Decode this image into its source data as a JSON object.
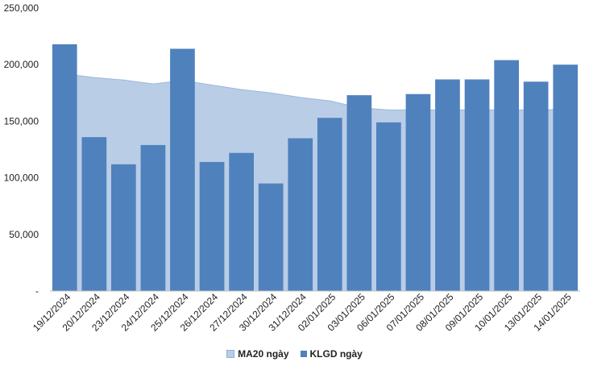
{
  "chart_data": {
    "type": "bar",
    "title": "",
    "xlabel": "",
    "ylabel": "",
    "ylim": [
      0,
      250000
    ],
    "y_ticks": [
      {
        "value": 0,
        "label": "-"
      },
      {
        "value": 50000,
        "label": "50,000"
      },
      {
        "value": 100000,
        "label": "100,000"
      },
      {
        "value": 150000,
        "label": "150,000"
      },
      {
        "value": 200000,
        "label": "200,000"
      },
      {
        "value": 250000,
        "label": "250,000"
      }
    ],
    "categories": [
      "19/12/2024",
      "20/12/2024",
      "23/12/2024",
      "24/12/2024",
      "25/12/2024",
      "26/12/2024",
      "27/12/2024",
      "30/12/2024",
      "31/12/2024",
      "02/01/2025",
      "03/01/2025",
      "06/01/2025",
      "07/01/2025",
      "08/01/2025",
      "09/01/2025",
      "10/01/2025",
      "13/01/2025",
      "14/01/2025"
    ],
    "series": [
      {
        "name": "MA20 ngày",
        "type": "area",
        "color": "#b9cde6",
        "values": [
          192000,
          188500,
          186500,
          183000,
          186000,
          182000,
          178000,
          175000,
          171000,
          168000,
          162000,
          160000,
          160000,
          160000,
          160000,
          160000,
          160000,
          160500
        ]
      },
      {
        "name": "KLGD ngày",
        "type": "bar",
        "color": "#4f81bd",
        "values": [
          218000,
          136000,
          112000,
          129000,
          214000,
          114000,
          122000,
          95000,
          135000,
          153000,
          173000,
          149000,
          174000,
          187000,
          187000,
          204000,
          185000,
          200000
        ]
      }
    ],
    "grid": false,
    "legend_position": "bottom"
  }
}
